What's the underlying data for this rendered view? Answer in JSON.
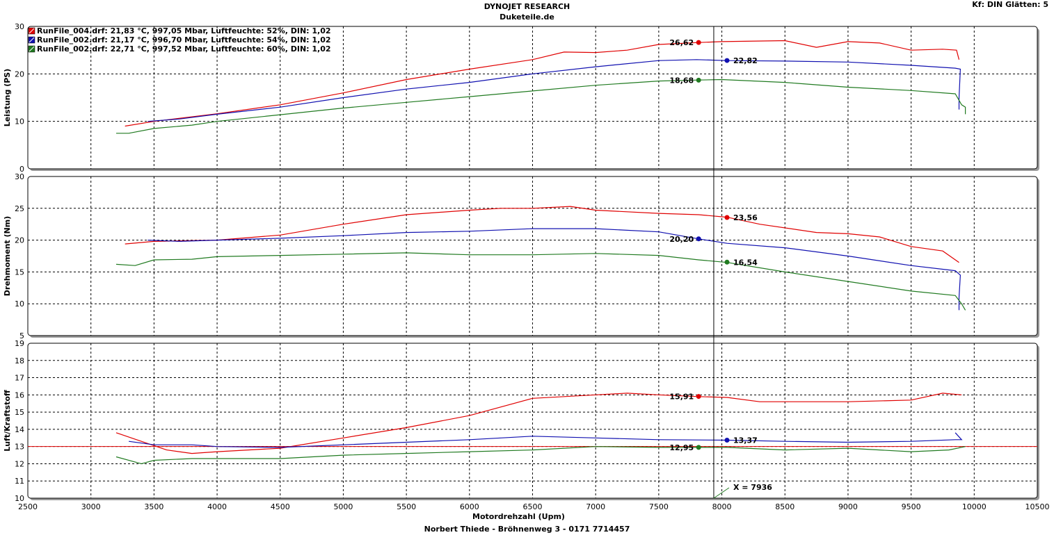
{
  "header": {
    "title": "DYNOJET RESEARCH",
    "subtitle": "Duketeile.de",
    "settings": "Kf: DIN  Glätten: 5"
  },
  "footer": "Norbert Thiede - Bröhnenweg 3 - 0171 7714457",
  "cursor_label": "X = 7936",
  "colors": {
    "run_a": "#e00000",
    "run_b": "#1010b0",
    "run_c": "#207a20",
    "cursor": "#000000"
  },
  "legend": [
    {
      "label": "RunFile_004.drf: 21,83 °C, 997,05 Mbar, Luftfeuchte: 52%, DIN: 1,02",
      "color": "#e00000"
    },
    {
      "label": "RunFile_002.drf: 21,17 °C, 996,70 Mbar, Luftfeuchte: 54%, DIN: 1,02",
      "color": "#1010b0"
    },
    {
      "label": "RunFile_002.drf: 22,71 °C, 997,52 Mbar, Luftfeuchte: 60%, DIN: 1,02",
      "color": "#207a20"
    }
  ],
  "chart_data": [
    {
      "type": "line",
      "ylabel": "Leistung (PS)",
      "xlim": [
        2500,
        10500
      ],
      "ylim": [
        0,
        30
      ],
      "yticks": [
        "0",
        "10",
        "20",
        "30"
      ],
      "grid": true,
      "legend_position": "top-left",
      "series": [
        {
          "color": "#e00000",
          "points": [
            [
              3270,
              9.0
            ],
            [
              3500,
              10.0
            ],
            [
              4000,
              11.6
            ],
            [
              4500,
              13.5
            ],
            [
              5000,
              16.0
            ],
            [
              5500,
              18.8
            ],
            [
              6000,
              21.0
            ],
            [
              6500,
              23.0
            ],
            [
              6750,
              24.6
            ],
            [
              7000,
              24.5
            ],
            [
              7250,
              25.0
            ],
            [
              7500,
              26.2
            ],
            [
              7816,
              26.6
            ],
            [
              8000,
              26.8
            ],
            [
              8500,
              27.0
            ],
            [
              8750,
              25.6
            ],
            [
              9000,
              26.8
            ],
            [
              9250,
              26.5
            ],
            [
              9500,
              25.0
            ],
            [
              9750,
              25.2
            ],
            [
              9860,
              25.0
            ],
            [
              9880,
              23.0
            ]
          ]
        },
        {
          "color": "#1010b0",
          "points": [
            [
              3450,
              10.0
            ],
            [
              3700,
              10.5
            ],
            [
              4000,
              11.5
            ],
            [
              4500,
              13.0
            ],
            [
              5000,
              15.0
            ],
            [
              5500,
              16.8
            ],
            [
              6000,
              18.2
            ],
            [
              6500,
              20.0
            ],
            [
              7000,
              21.5
            ],
            [
              7500,
              22.8
            ],
            [
              7800,
              23.0
            ],
            [
              8041,
              22.8
            ],
            [
              8500,
              22.7
            ],
            [
              9000,
              22.5
            ],
            [
              9500,
              21.8
            ],
            [
              9850,
              21.2
            ],
            [
              9890,
              21.0
            ],
            [
              9880,
              15.0
            ],
            [
              9880,
              12.5
            ]
          ]
        },
        {
          "color": "#207a20",
          "points": [
            [
              3200,
              7.5
            ],
            [
              3300,
              7.5
            ],
            [
              3500,
              8.5
            ],
            [
              3800,
              9.2
            ],
            [
              4000,
              10.0
            ],
            [
              4500,
              11.4
            ],
            [
              5000,
              12.8
            ],
            [
              5500,
              14.0
            ],
            [
              6000,
              15.2
            ],
            [
              6500,
              16.4
            ],
            [
              7000,
              17.6
            ],
            [
              7500,
              18.5
            ],
            [
              7816,
              18.7
            ],
            [
              8000,
              18.8
            ],
            [
              8500,
              18.2
            ],
            [
              9000,
              17.2
            ],
            [
              9500,
              16.5
            ],
            [
              9850,
              15.8
            ],
            [
              9900,
              13.5
            ],
            [
              9930,
              13.0
            ],
            [
              9930,
              11.5
            ]
          ]
        }
      ],
      "markers": [
        {
          "x": 7816,
          "y": 26.62,
          "label": "26,62",
          "side": "left",
          "color": "#e00000"
        },
        {
          "x": 8041,
          "y": 22.82,
          "label": "22,82",
          "side": "right",
          "color": "#1010b0"
        },
        {
          "x": 7816,
          "y": 18.68,
          "label": "18,68",
          "side": "left",
          "color": "#207a20"
        }
      ]
    },
    {
      "type": "line",
      "ylabel": "Drehmoment (Nm)",
      "xlim": [
        2500,
        10500
      ],
      "ylim": [
        5,
        30
      ],
      "yticks": [
        "5",
        "10",
        "15",
        "20",
        "25",
        "30"
      ],
      "grid": true,
      "series": [
        {
          "color": "#e00000",
          "points": [
            [
              3270,
              19.4
            ],
            [
              3500,
              19.8
            ],
            [
              4000,
              20.0
            ],
            [
              4500,
              20.8
            ],
            [
              5000,
              22.5
            ],
            [
              5500,
              24.0
            ],
            [
              6000,
              24.7
            ],
            [
              6250,
              25.0
            ],
            [
              6500,
              25.0
            ],
            [
              6800,
              25.3
            ],
            [
              7000,
              24.7
            ],
            [
              7500,
              24.2
            ],
            [
              7816,
              24.0
            ],
            [
              8041,
              23.6
            ],
            [
              8300,
              22.5
            ],
            [
              8750,
              21.2
            ],
            [
              9000,
              21.0
            ],
            [
              9250,
              20.5
            ],
            [
              9500,
              19.0
            ],
            [
              9750,
              18.3
            ],
            [
              9880,
              16.5
            ]
          ]
        },
        {
          "color": "#1010b0",
          "points": [
            [
              3450,
              20.0
            ],
            [
              3700,
              19.8
            ],
            [
              4000,
              20.0
            ],
            [
              4500,
              20.3
            ],
            [
              5000,
              20.7
            ],
            [
              5500,
              21.2
            ],
            [
              6000,
              21.4
            ],
            [
              6500,
              21.8
            ],
            [
              7000,
              21.8
            ],
            [
              7500,
              21.3
            ],
            [
              7816,
              20.2
            ],
            [
              8041,
              19.5
            ],
            [
              8500,
              18.8
            ],
            [
              9000,
              17.5
            ],
            [
              9500,
              16.0
            ],
            [
              9850,
              15.2
            ],
            [
              9890,
              14.5
            ],
            [
              9880,
              11.0
            ],
            [
              9880,
              9.0
            ]
          ]
        },
        {
          "color": "#207a20",
          "points": [
            [
              3200,
              16.2
            ],
            [
              3350,
              16.0
            ],
            [
              3500,
              16.9
            ],
            [
              3800,
              17.0
            ],
            [
              4000,
              17.4
            ],
            [
              4500,
              17.6
            ],
            [
              5000,
              17.8
            ],
            [
              5500,
              18.0
            ],
            [
              6000,
              17.7
            ],
            [
              6500,
              17.7
            ],
            [
              7000,
              17.9
            ],
            [
              7500,
              17.6
            ],
            [
              7816,
              16.9
            ],
            [
              8041,
              16.5
            ],
            [
              8500,
              15.0
            ],
            [
              9000,
              13.5
            ],
            [
              9500,
              12.0
            ],
            [
              9850,
              11.3
            ],
            [
              9900,
              10.0
            ],
            [
              9930,
              9.0
            ]
          ]
        }
      ],
      "markers": [
        {
          "x": 8041,
          "y": 23.56,
          "label": "23,56",
          "side": "right",
          "color": "#e00000"
        },
        {
          "x": 7816,
          "y": 20.2,
          "label": "20,20",
          "side": "left",
          "color": "#1010b0"
        },
        {
          "x": 8041,
          "y": 16.54,
          "label": "16,54",
          "side": "right",
          "color": "#207a20"
        }
      ]
    },
    {
      "type": "line",
      "ylabel": "Luft/Kraftstoff",
      "xlabel": "Motordrehzahl (Upm)",
      "xlim": [
        2500,
        10500
      ],
      "ylim": [
        10,
        19
      ],
      "yticks": [
        "10",
        "11",
        "12",
        "13",
        "14",
        "15",
        "16",
        "17",
        "18",
        "19"
      ],
      "xticks": [
        "2500",
        "3000",
        "3500",
        "4000",
        "4500",
        "5000",
        "5500",
        "6000",
        "6500",
        "7000",
        "7500",
        "8000",
        "8500",
        "9000",
        "9500",
        "10000",
        "10500"
      ],
      "grid": true,
      "reference_line": {
        "y": 13.0,
        "color": "#e00000"
      },
      "series": [
        {
          "color": "#e00000",
          "points": [
            [
              3200,
              13.8
            ],
            [
              3400,
              13.3
            ],
            [
              3600,
              12.8
            ],
            [
              3800,
              12.6
            ],
            [
              4000,
              12.7
            ],
            [
              4500,
              12.9
            ],
            [
              5000,
              13.5
            ],
            [
              5500,
              14.1
            ],
            [
              6000,
              14.8
            ],
            [
              6500,
              15.8
            ],
            [
              7000,
              16.0
            ],
            [
              7250,
              16.1
            ],
            [
              7500,
              16.0
            ],
            [
              7816,
              15.9
            ],
            [
              8041,
              15.85
            ],
            [
              8300,
              15.6
            ],
            [
              8750,
              15.6
            ],
            [
              9000,
              15.6
            ],
            [
              9500,
              15.7
            ],
            [
              9750,
              16.1
            ],
            [
              9900,
              16.0
            ]
          ]
        },
        {
          "color": "#1010b0",
          "points": [
            [
              3300,
              13.3
            ],
            [
              3500,
              13.1
            ],
            [
              3800,
              13.1
            ],
            [
              4000,
              13.0
            ],
            [
              4500,
              12.95
            ],
            [
              5000,
              13.1
            ],
            [
              5500,
              13.25
            ],
            [
              6000,
              13.4
            ],
            [
              6500,
              13.6
            ],
            [
              7000,
              13.5
            ],
            [
              7500,
              13.4
            ],
            [
              8041,
              13.37
            ],
            [
              8500,
              13.3
            ],
            [
              9000,
              13.25
            ],
            [
              9500,
              13.3
            ],
            [
              9850,
              13.4
            ],
            [
              9900,
              13.4
            ],
            [
              9850,
              13.8
            ]
          ]
        },
        {
          "color": "#207a20",
          "points": [
            [
              3200,
              12.4
            ],
            [
              3400,
              12.0
            ],
            [
              3500,
              12.2
            ],
            [
              3800,
              12.3
            ],
            [
              4000,
              12.3
            ],
            [
              4500,
              12.3
            ],
            [
              5000,
              12.5
            ],
            [
              5500,
              12.6
            ],
            [
              6000,
              12.7
            ],
            [
              6500,
              12.8
            ],
            [
              7000,
              13.0
            ],
            [
              7500,
              12.95
            ],
            [
              7816,
              12.95
            ],
            [
              8041,
              12.95
            ],
            [
              8500,
              12.8
            ],
            [
              9000,
              12.9
            ],
            [
              9500,
              12.7
            ],
            [
              9800,
              12.8
            ],
            [
              9930,
              13.0
            ]
          ]
        }
      ],
      "markers": [
        {
          "x": 7816,
          "y": 15.91,
          "label": "15,91",
          "side": "left",
          "color": "#e00000"
        },
        {
          "x": 8041,
          "y": 13.37,
          "label": "13,37",
          "side": "right",
          "color": "#1010b0"
        },
        {
          "x": 7816,
          "y": 12.95,
          "label": "12,95",
          "side": "left",
          "color": "#207a20"
        }
      ]
    }
  ]
}
